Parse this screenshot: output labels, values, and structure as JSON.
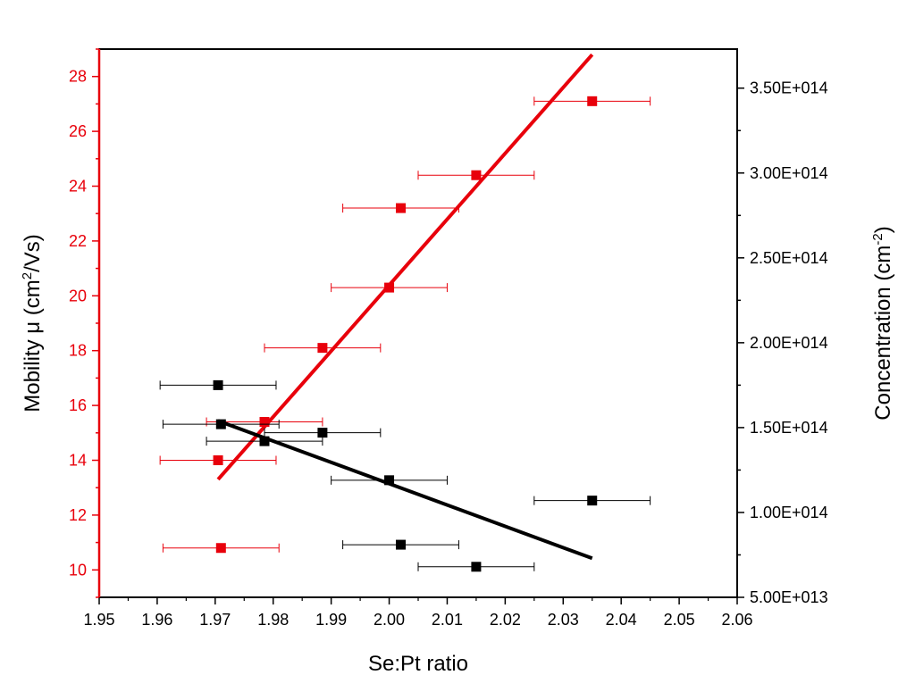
{
  "chart_data": {
    "type": "scatter",
    "xlabel": "Se:Pt ratio",
    "ylabel_left_prefix": "Mobility μ (cm",
    "ylabel_left_sup": "2",
    "ylabel_left_suffix": "/Vs)",
    "ylabel_right_prefix": "Concentration (cm",
    "ylabel_right_sup": "-2",
    "ylabel_right_suffix": ")",
    "xlim": [
      1.95,
      2.06
    ],
    "ylim_left": [
      9,
      29
    ],
    "ylim_right": [
      50000000000000,
      373000000000000
    ],
    "xticks": [
      "1.95",
      "1.96",
      "1.97",
      "1.98",
      "1.99",
      "2.00",
      "2.01",
      "2.02",
      "2.03",
      "2.04",
      "2.05",
      "2.06"
    ],
    "yticks_left": [
      "10",
      "12",
      "14",
      "16",
      "18",
      "20",
      "22",
      "24",
      "26",
      "28"
    ],
    "yticks_right": [
      "5.00E+013",
      "1.00E+014",
      "1.50E+014",
      "2.00E+014",
      "2.50E+014",
      "3.00E+014",
      "3.50E+014"
    ],
    "grid": false,
    "colors": {
      "mobility": "#e8000b",
      "concentration": "#000000"
    },
    "series": [
      {
        "axis": "left",
        "color": "#e8000b",
        "points": [
          {
            "x": 1.971,
            "y": 10.8,
            "xerr": 0.01
          },
          {
            "x": 1.9705,
            "y": 14.0,
            "xerr": 0.01
          },
          {
            "x": 1.9785,
            "y": 15.4,
            "xerr": 0.01
          },
          {
            "x": 1.9885,
            "y": 18.1,
            "xerr": 0.01
          },
          {
            "x": 2.0,
            "y": 20.3,
            "xerr": 0.01
          },
          {
            "x": 2.002,
            "y": 23.2,
            "xerr": 0.01
          },
          {
            "x": 2.015,
            "y": 24.4,
            "xerr": 0.01
          },
          {
            "x": 2.035,
            "y": 27.1,
            "xerr": 0.01
          }
        ],
        "fit": [
          [
            1.9705,
            13.3
          ],
          [
            2.035,
            28.8
          ]
        ]
      },
      {
        "axis": "right",
        "color": "#000000",
        "points": [
          {
            "x": 1.9705,
            "y": 175000000000000,
            "xerr": 0.01
          },
          {
            "x": 1.971,
            "y": 152000000000000,
            "xerr": 0.01
          },
          {
            "x": 1.9785,
            "y": 142000000000000,
            "xerr": 0.01
          },
          {
            "x": 1.9885,
            "y": 147000000000000,
            "xerr": 0.01
          },
          {
            "x": 2.0,
            "y": 119000000000000,
            "xerr": 0.01
          },
          {
            "x": 2.002,
            "y": 81000000000000,
            "xerr": 0.01
          },
          {
            "x": 2.015,
            "y": 68000000000000,
            "xerr": 0.01
          },
          {
            "x": 2.035,
            "y": 107000000000000,
            "xerr": 0.01
          }
        ],
        "fit": [
          [
            1.9705,
            154000000000000
          ],
          [
            2.035,
            73000000000000
          ]
        ]
      }
    ]
  }
}
